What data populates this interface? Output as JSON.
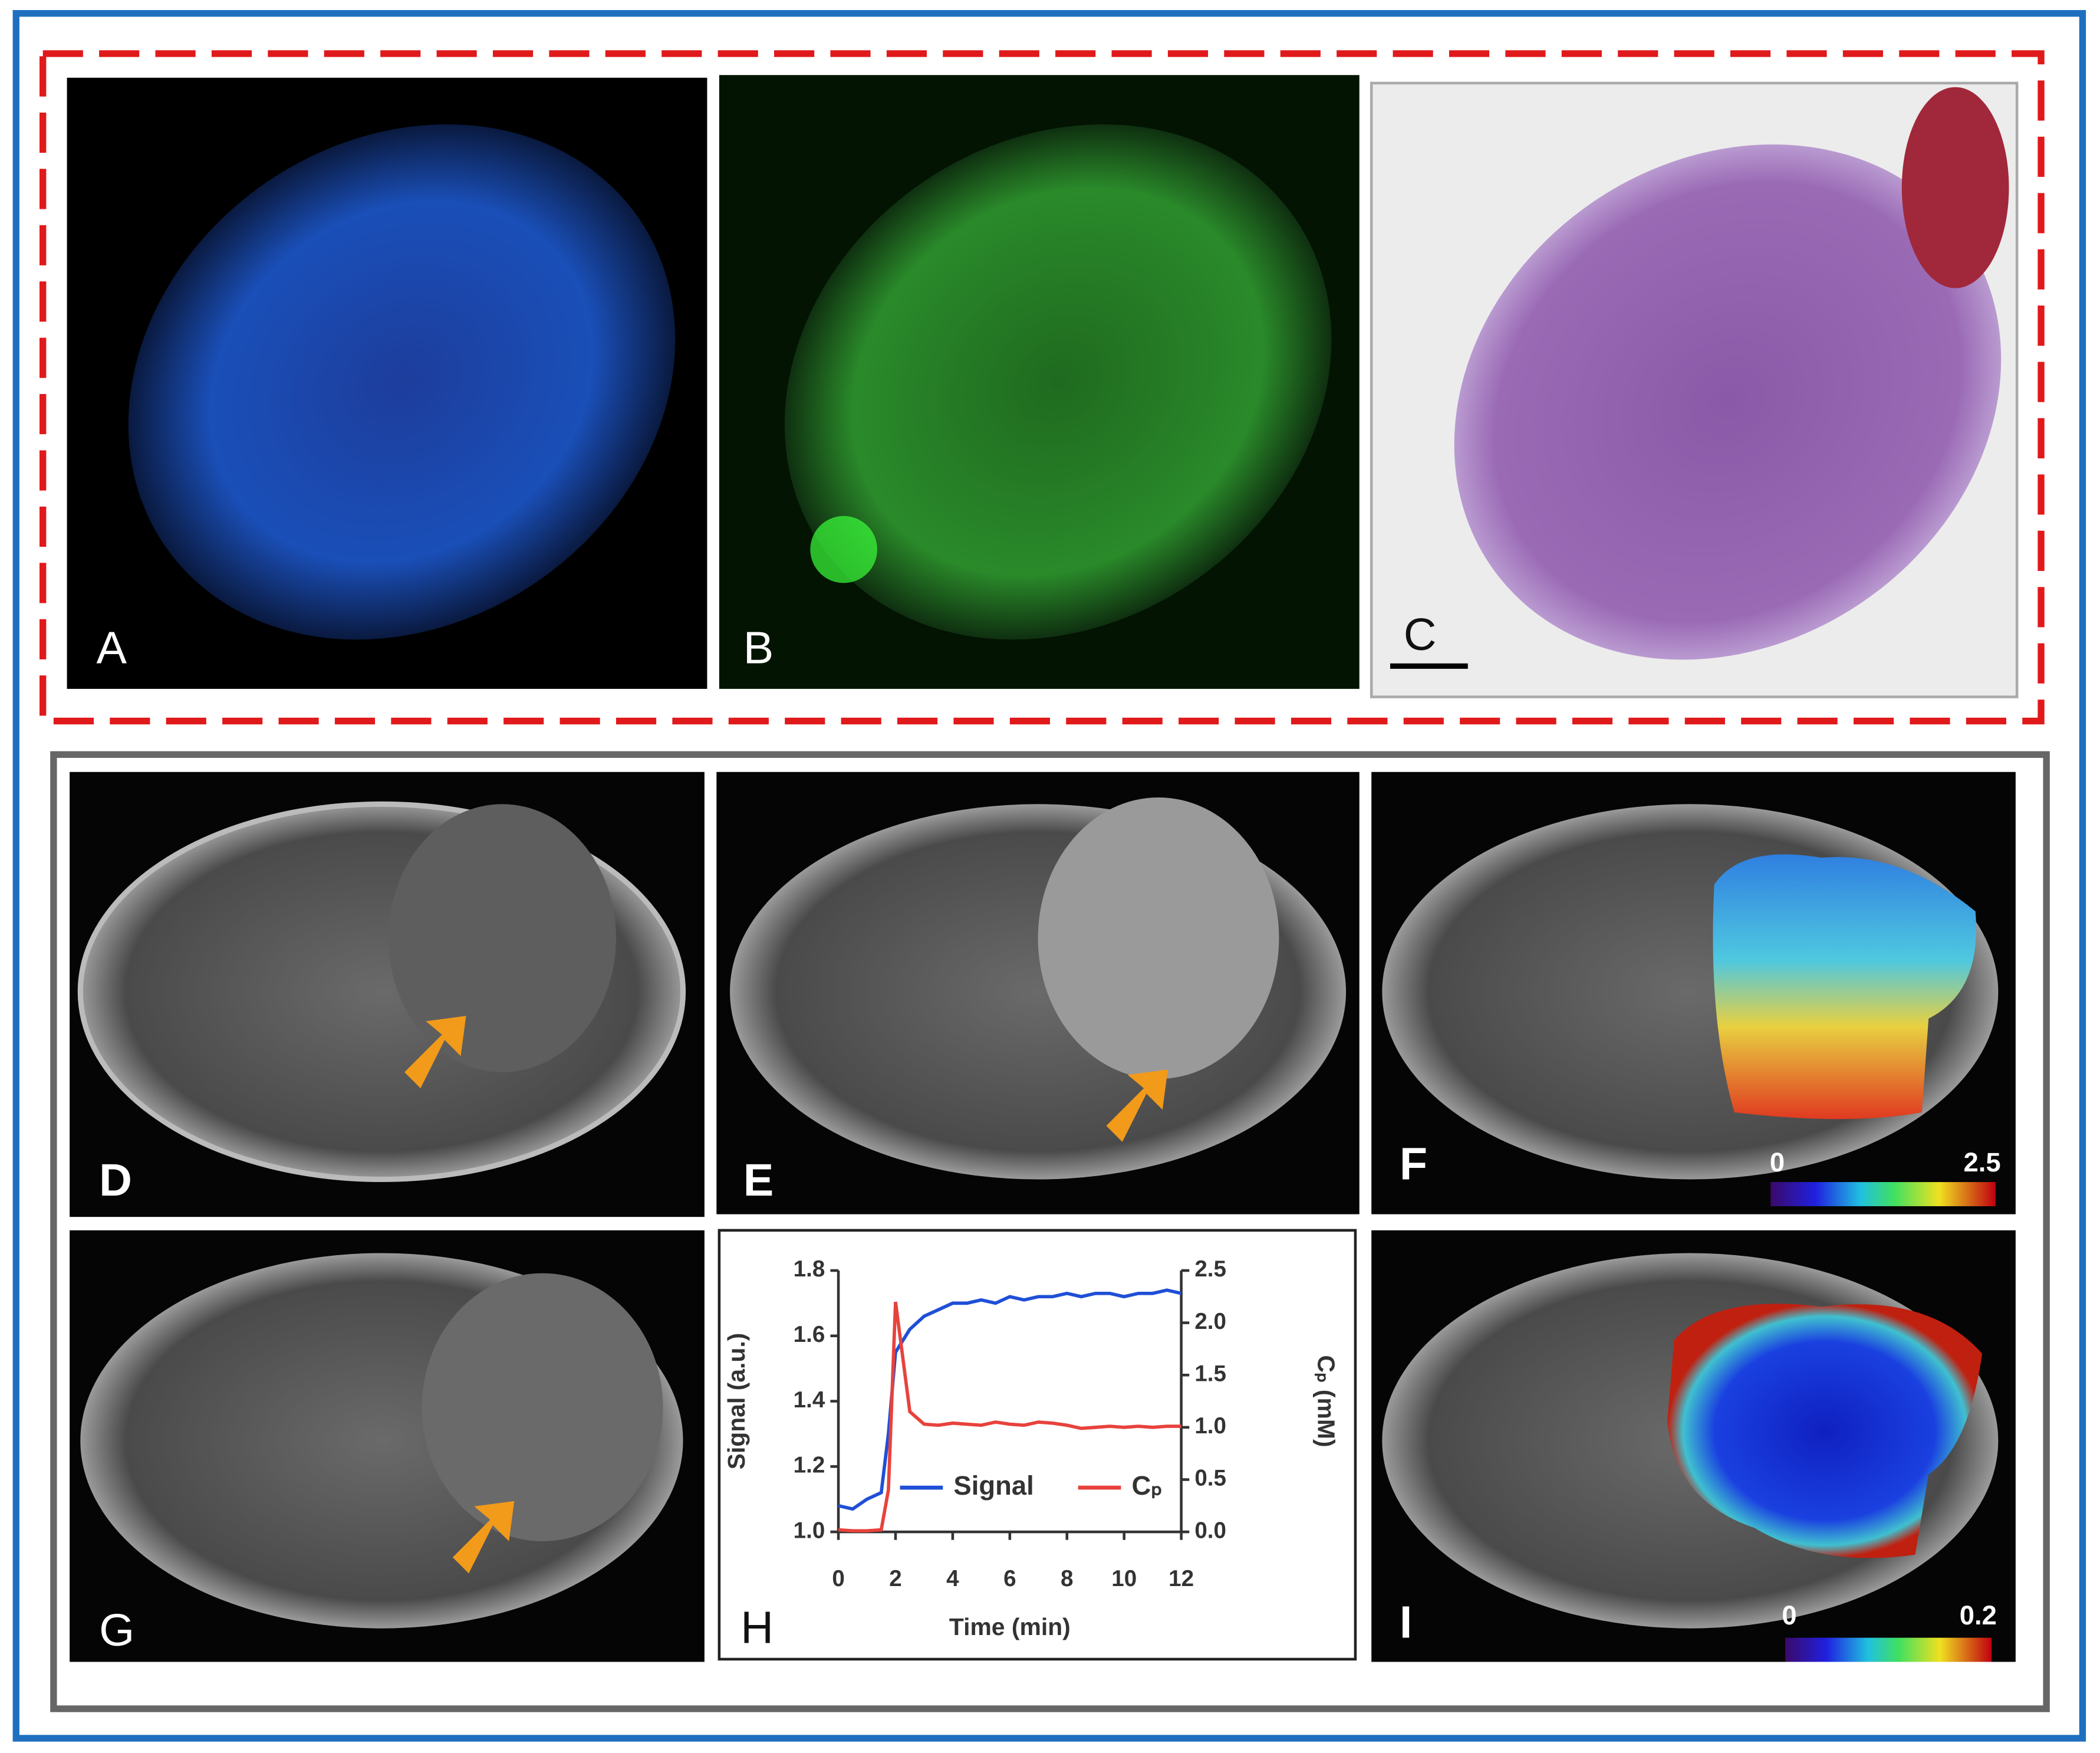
{
  "panels": [
    "A",
    "B",
    "C",
    "D",
    "E",
    "F",
    "G",
    "H",
    "I"
  ],
  "colorbars": [
    {
      "min": 0,
      "max": 2.5
    },
    {
      "min": 0,
      "max": 0.2
    }
  ],
  "chart_data": {
    "type": "line",
    "x_label": "Time (min)",
    "y_label": "Signal (a.u.)",
    "y2_label": "Cₚ (mM)",
    "x": [
      0,
      0.5,
      1,
      1.5,
      1.75,
      2,
      2.5,
      3,
      3.5,
      4,
      4.5,
      5,
      5.5,
      6,
      6.5,
      7,
      7.5,
      8,
      8.5,
      9,
      9.5,
      10,
      10.5,
      11,
      11.5,
      12
    ],
    "series": [
      {
        "name": "Signal",
        "color": "#1f4fd6",
        "values": [
          1.08,
          1.07,
          1.1,
          1.12,
          1.3,
          1.55,
          1.62,
          1.66,
          1.68,
          1.7,
          1.7,
          1.71,
          1.7,
          1.72,
          1.71,
          1.72,
          1.72,
          1.73,
          1.72,
          1.73,
          1.73,
          1.72,
          1.73,
          1.73,
          1.74,
          1.73
        ]
      },
      {
        "name": "Cₚ",
        "color": "#e8423c",
        "axis": "y2",
        "values": [
          0.02,
          0.01,
          0.01,
          0.02,
          0.4,
          2.2,
          1.15,
          1.03,
          1.02,
          1.04,
          1.03,
          1.02,
          1.05,
          1.03,
          1.02,
          1.05,
          1.04,
          1.02,
          0.99,
          1.0,
          1.01,
          1.0,
          1.01,
          1.0,
          1.01,
          1.01
        ]
      }
    ],
    "xlim": [
      0,
      12
    ],
    "xticks": [
      0,
      2,
      4,
      6,
      8,
      10,
      12
    ],
    "ylim": [
      1,
      1.8
    ],
    "yticks": [
      {
        "value": 1,
        "label": "1.0"
      },
      1.2,
      1.4,
      1.6,
      1.8
    ],
    "y2lim": [
      0,
      2.5
    ],
    "y2ticks": [
      {
        "value": 0,
        "label": "0.0"
      },
      0.5,
      {
        "value": 1,
        "label": "1.0"
      },
      1.5,
      {
        "value": 2,
        "label": "2.0"
      },
      2.5
    ]
  }
}
